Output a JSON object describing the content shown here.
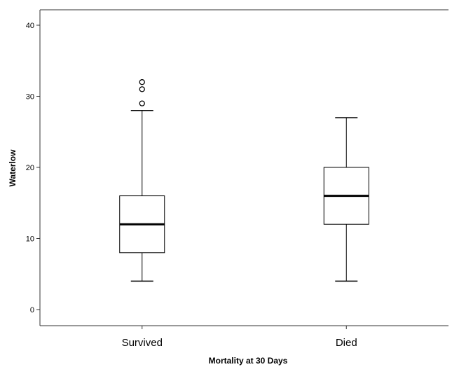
{
  "chart_data": {
    "type": "boxplot",
    "title": "",
    "xlabel": "Mortality at 30 Days",
    "ylabel": "Waterlow",
    "ylim": [
      -2,
      42
    ],
    "yticks": [
      0,
      10,
      20,
      30,
      40
    ],
    "grid": false,
    "categories": [
      "Survived",
      "Died"
    ],
    "series": [
      {
        "category": "Survived",
        "whisker_low": 4,
        "q1": 8,
        "median": 12,
        "q3": 16,
        "whisker_high": 28,
        "outliers": [
          29,
          31,
          32
        ]
      },
      {
        "category": "Died",
        "whisker_low": 4,
        "q1": 12,
        "median": 16,
        "q3": 20,
        "whisker_high": 27,
        "outliers": []
      }
    ]
  }
}
